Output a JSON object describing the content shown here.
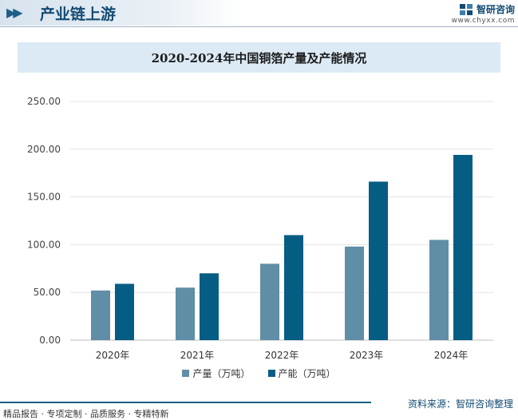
{
  "header": {
    "section_title": "产业链上游",
    "brand_name": "智研咨询",
    "brand_url": "www.chyxx.com"
  },
  "chart_data": {
    "type": "bar",
    "title": "2020-2024年中国铜箔产量及产能情况",
    "categories": [
      "2020年",
      "2021年",
      "2022年",
      "2023年",
      "2024年"
    ],
    "series": [
      {
        "name": "产量（万吨）",
        "values": [
          52,
          55,
          80,
          98,
          105
        ],
        "color": "#5f8ea6"
      },
      {
        "name": "产能（万吨）",
        "values": [
          59,
          70,
          110,
          166,
          194
        ],
        "color": "#065d84"
      }
    ],
    "y_ticks": [
      "0.00",
      "50.00",
      "100.00",
      "150.00",
      "200.00",
      "250.00"
    ],
    "ylim": [
      0,
      250
    ],
    "grid": true,
    "legend_position": "bottom"
  },
  "footer": {
    "services": "精品报告 · 专项定制 · 品质服务 · 专精特新",
    "source": "资料来源：智研咨询整理"
  }
}
